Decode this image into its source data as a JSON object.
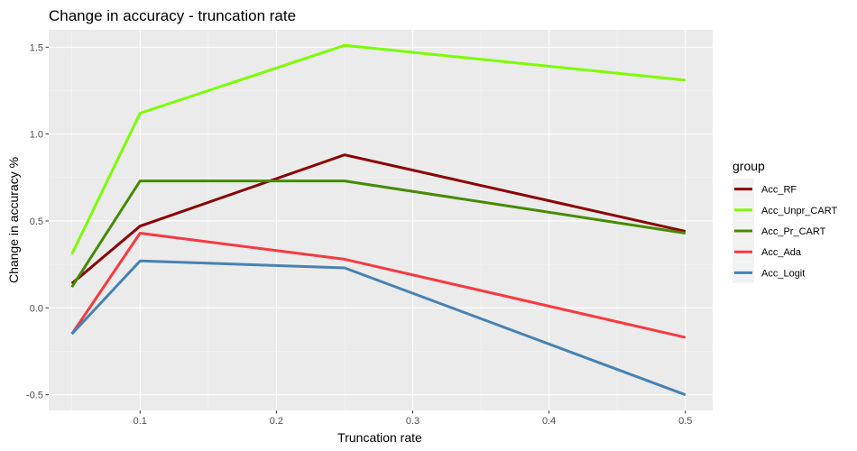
{
  "chart_data": {
    "type": "line",
    "title": "Change in accuracy - truncation rate",
    "xlabel": "Truncation rate",
    "ylabel": "Change in accuracy %",
    "xlim": [
      0.033,
      0.52
    ],
    "ylim": [
      -0.59,
      1.6
    ],
    "x_ticks": [
      0.1,
      0.2,
      0.3,
      0.4,
      0.5
    ],
    "x_tick_labels": [
      "0.1",
      "0.2",
      "0.3",
      "0.4",
      "0.5"
    ],
    "y_ticks": [
      -0.5,
      0.0,
      0.5,
      1.0,
      1.5
    ],
    "y_tick_labels": [
      "-0.5",
      "0.0",
      "0.5",
      "1.0",
      "1.5"
    ],
    "x": [
      0.05,
      0.1,
      0.25,
      0.5
    ],
    "grid": true,
    "legend": {
      "title": "group",
      "position": "right"
    },
    "background": "#ebebeb",
    "series": [
      {
        "name": "Acc_RF",
        "color": "#8b0000",
        "values": [
          0.14,
          0.47,
          0.88,
          0.44
        ]
      },
      {
        "name": "Acc_Unpr_CART",
        "color": "#7cfc00",
        "values": [
          0.31,
          1.12,
          1.51,
          1.31
        ]
      },
      {
        "name": "Acc_Pr_CART",
        "color": "#458b00",
        "values": [
          0.12,
          0.73,
          0.73,
          0.43
        ]
      },
      {
        "name": "Acc_Ada",
        "color": "#f8393f",
        "values": [
          -0.15,
          0.43,
          0.28,
          -0.17
        ]
      },
      {
        "name": "Acc_Logit",
        "color": "#4682b4",
        "values": [
          -0.15,
          0.27,
          0.23,
          -0.5
        ]
      }
    ]
  }
}
